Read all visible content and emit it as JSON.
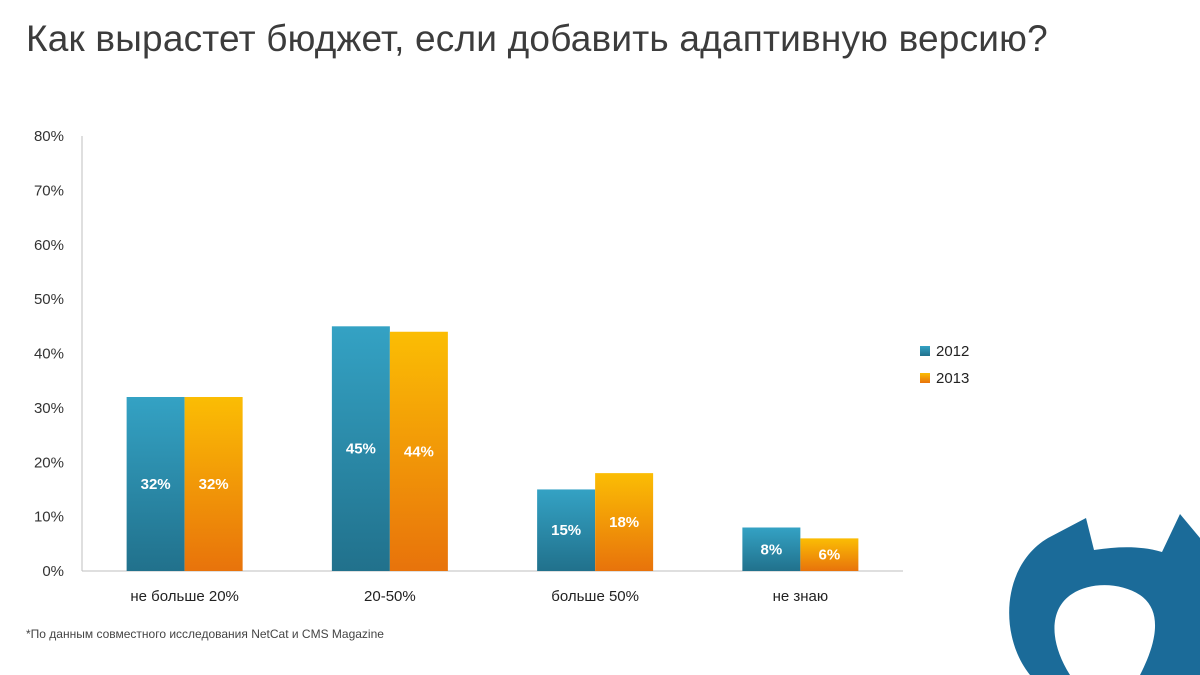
{
  "title": "Как вырастет бюджет, если добавить адаптивную версию?",
  "footnote": "*По данным совместного исследования NetCat и CMS Magazine",
  "logo": {
    "name": "NetCat"
  },
  "colors": {
    "series_2012_top": "#34a2c4",
    "series_2012_bottom": "#21718c",
    "series_2013_top": "#fbbd04",
    "series_2013_bottom": "#e8730b",
    "logo_blue": "#1b6b99",
    "axis": "#bfbfbf"
  },
  "chart_data": {
    "type": "bar",
    "title": "Как вырастет бюджет, если добавить адаптивную версию?",
    "xlabel": "",
    "ylabel": "",
    "ylim": [
      0,
      80
    ],
    "yticks": [
      "0%",
      "10%",
      "20%",
      "30%",
      "40%",
      "50%",
      "60%",
      "70%",
      "80%"
    ],
    "grid": false,
    "legend_position": "right",
    "categories": [
      "не больше 20%",
      "20-50%",
      "больше 50%",
      "не знаю"
    ],
    "series": [
      {
        "name": "2012",
        "values": [
          32,
          45,
          15,
          8
        ],
        "labels": [
          "32%",
          "45%",
          "15%",
          "8%"
        ]
      },
      {
        "name": "2013",
        "values": [
          32,
          44,
          18,
          6
        ],
        "labels": [
          "32%",
          "44%",
          "18%",
          "6%"
        ]
      }
    ]
  }
}
